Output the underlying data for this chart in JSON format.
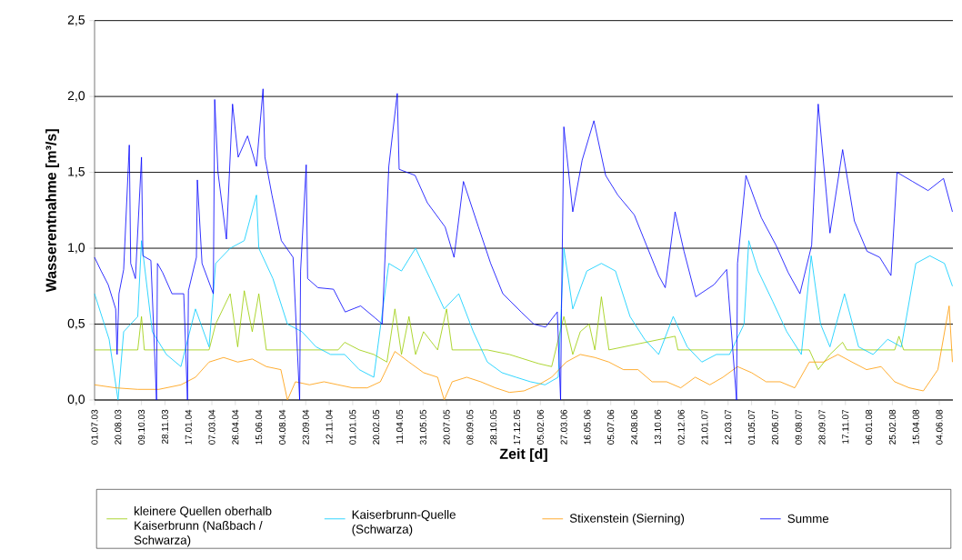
{
  "chart_data": {
    "type": "line",
    "xlabel": "Zeit [d]",
    "ylabel": "Wasserentnahme [m³/s]",
    "xlim": [
      "2003-07-01",
      "2008-07-03"
    ],
    "xticks": [
      {
        "value": "2003-07-01",
        "label": "01.07.03"
      },
      {
        "value": "2003-08-20",
        "label": "20.08.03"
      },
      {
        "value": "2003-10-09",
        "label": "09.10.03"
      },
      {
        "value": "2003-11-28",
        "label": "28.11.03"
      },
      {
        "value": "2004-01-17",
        "label": "17.01.04"
      },
      {
        "value": "2004-03-07",
        "label": "07.03.04"
      },
      {
        "value": "2004-04-26",
        "label": "26.04.04"
      },
      {
        "value": "2004-06-15",
        "label": "15.06.04"
      },
      {
        "value": "2004-08-04",
        "label": "04.08.04"
      },
      {
        "value": "2004-09-23",
        "label": "23.09.04"
      },
      {
        "value": "2004-11-12",
        "label": "12.11.04"
      },
      {
        "value": "2005-01-01",
        "label": "01.01.05"
      },
      {
        "value": "2005-02-20",
        "label": "20.02.05"
      },
      {
        "value": "2005-04-11",
        "label": "11.04.05"
      },
      {
        "value": "2005-05-31",
        "label": "31.05.05"
      },
      {
        "value": "2005-07-20",
        "label": "20.07.05"
      },
      {
        "value": "2005-09-08",
        "label": "08.09.05"
      },
      {
        "value": "2005-10-28",
        "label": "28.10.05"
      },
      {
        "value": "2005-12-17",
        "label": "17.12.05"
      },
      {
        "value": "2006-02-05",
        "label": "05.02.06"
      },
      {
        "value": "2006-03-27",
        "label": "27.03.06"
      },
      {
        "value": "2006-05-16",
        "label": "16.05.06"
      },
      {
        "value": "2006-07-05",
        "label": "05.07.06"
      },
      {
        "value": "2006-08-24",
        "label": "24.08.06"
      },
      {
        "value": "2006-10-13",
        "label": "13.10.06"
      },
      {
        "value": "2006-12-02",
        "label": "02.12.06"
      },
      {
        "value": "2007-01-21",
        "label": "21.01.07"
      },
      {
        "value": "2007-03-12",
        "label": "12.03.07"
      },
      {
        "value": "2007-05-01",
        "label": "01.05.07"
      },
      {
        "value": "2007-06-20",
        "label": "20.06.07"
      },
      {
        "value": "2007-08-09",
        "label": "09.08.07"
      },
      {
        "value": "2007-09-28",
        "label": "28.09.07"
      },
      {
        "value": "2007-11-17",
        "label": "17.11.07"
      },
      {
        "value": "2008-01-06",
        "label": "06.01.08"
      },
      {
        "value": "2008-02-25",
        "label": "25.02.08"
      },
      {
        "value": "2008-04-15",
        "label": "15.04.08"
      },
      {
        "value": "2008-06-04",
        "label": "04.06.08"
      }
    ],
    "ylim": [
      0,
      2.5
    ],
    "yticks": [
      {
        "value": 0,
        "label": "0,0"
      },
      {
        "value": 0.5,
        "label": "0,5"
      },
      {
        "value": 1,
        "label": "1,0"
      },
      {
        "value": 1.5,
        "label": "1,5"
      },
      {
        "value": 2,
        "label": "2,0"
      },
      {
        "value": 2.5,
        "label": "2,5"
      }
    ],
    "grid": "y",
    "legend": "bottom",
    "marker": "none",
    "line_style": "solid",
    "series": [
      {
        "name": "kleinere Quellen oberhalb Kaiserbrunn (Naßbach / Schwarza)",
        "color": "#99cc00",
        "x": [
          "2003-07-01",
          "2003-10-01",
          "2003-10-09",
          "2003-10-15",
          "2004-03-01",
          "2004-03-15",
          "2004-04-15",
          "2004-05-01",
          "2004-05-15",
          "2004-06-01",
          "2004-06-15",
          "2004-07-01",
          "2004-12-01",
          "2004-12-15",
          "2005-01-15",
          "2005-02-15",
          "2005-03-15",
          "2005-04-01",
          "2005-04-15",
          "2005-05-01",
          "2005-05-15",
          "2005-06-01",
          "2005-07-01",
          "2005-07-20",
          "2005-08-01",
          "2005-10-15",
          "2005-12-01",
          "2006-02-01",
          "2006-03-01",
          "2006-03-27",
          "2006-04-15",
          "2006-05-01",
          "2006-05-20",
          "2006-06-01",
          "2006-06-15",
          "2006-07-01",
          "2006-11-19",
          "2006-11-25",
          "2007-09-01",
          "2007-09-20",
          "2007-10-15",
          "2007-11-11",
          "2007-11-20",
          "2008-03-01",
          "2008-03-10",
          "2008-03-20",
          "2008-07-02"
        ],
        "values": [
          0.33,
          0.33,
          0.55,
          0.33,
          0.33,
          0.5,
          0.7,
          0.35,
          0.72,
          0.45,
          0.7,
          0.33,
          0.33,
          0.38,
          0.33,
          0.3,
          0.25,
          0.6,
          0.3,
          0.55,
          0.3,
          0.45,
          0.33,
          0.6,
          0.33,
          0.33,
          0.3,
          0.24,
          0.22,
          0.55,
          0.3,
          0.45,
          0.5,
          0.33,
          0.68,
          0.33,
          0.42,
          0.33,
          0.33,
          0.2,
          0.3,
          0.38,
          0.33,
          0.33,
          0.42,
          0.33,
          0.33
        ]
      },
      {
        "name": "Kaiserbrunn-Quelle (Schwarza)",
        "color": "#00ccff",
        "x": [
          "2003-07-01",
          "2003-08-01",
          "2003-08-20",
          "2003-09-01",
          "2003-10-01",
          "2003-10-09",
          "2003-11-01",
          "2003-12-01",
          "2004-01-01",
          "2004-02-01",
          "2004-03-01",
          "2004-03-15",
          "2004-04-15",
          "2004-05-15",
          "2004-06-10",
          "2004-06-15",
          "2004-07-15",
          "2004-08-15",
          "2004-09-15",
          "2004-10-15",
          "2004-11-15",
          "2004-12-15",
          "2005-01-15",
          "2005-02-15",
          "2005-03-19",
          "2005-04-15",
          "2005-05-15",
          "2005-06-15",
          "2005-07-15",
          "2005-08-15",
          "2005-09-15",
          "2005-10-15",
          "2005-11-15",
          "2005-12-15",
          "2006-01-15",
          "2006-02-15",
          "2006-03-15",
          "2006-03-27",
          "2006-04-15",
          "2006-05-15",
          "2006-06-15",
          "2006-07-15",
          "2006-08-15",
          "2006-09-15",
          "2006-10-15",
          "2006-11-15",
          "2006-12-15",
          "2007-01-15",
          "2007-02-15",
          "2007-03-15",
          "2007-04-15",
          "2007-04-25",
          "2007-05-15",
          "2007-06-15",
          "2007-07-15",
          "2007-08-15",
          "2007-09-05",
          "2007-09-25",
          "2007-10-15",
          "2007-11-15",
          "2007-12-15",
          "2008-01-15",
          "2008-02-15",
          "2008-03-15",
          "2008-04-15",
          "2008-05-15",
          "2008-06-15",
          "2008-07-02"
        ],
        "values": [
          0.7,
          0.4,
          0.0,
          0.45,
          0.55,
          1.05,
          0.45,
          0.3,
          0.22,
          0.6,
          0.35,
          0.9,
          1.0,
          1.05,
          1.35,
          1.0,
          0.8,
          0.5,
          0.45,
          0.35,
          0.3,
          0.3,
          0.2,
          0.15,
          0.9,
          0.85,
          1.0,
          0.8,
          0.6,
          0.7,
          0.45,
          0.25,
          0.18,
          0.15,
          0.12,
          0.1,
          0.15,
          1.0,
          0.6,
          0.85,
          0.9,
          0.85,
          0.55,
          0.4,
          0.3,
          0.55,
          0.35,
          0.25,
          0.3,
          0.3,
          0.5,
          1.05,
          0.85,
          0.65,
          0.45,
          0.3,
          0.95,
          0.5,
          0.35,
          0.7,
          0.35,
          0.3,
          0.4,
          0.35,
          0.9,
          0.95,
          0.9,
          0.75
        ]
      },
      {
        "name": "Stixenstein (Sierning)",
        "color": "#ff9900",
        "x": [
          "2003-07-01",
          "2003-08-15",
          "2003-10-01",
          "2003-11-15",
          "2004-01-01",
          "2004-02-01",
          "2004-03-01",
          "2004-04-01",
          "2004-05-01",
          "2004-06-01",
          "2004-07-01",
          "2004-08-01",
          "2004-08-15",
          "2004-09-01",
          "2004-10-01",
          "2004-11-01",
          "2004-12-01",
          "2005-01-01",
          "2005-02-01",
          "2005-03-01",
          "2005-04-01",
          "2005-05-01",
          "2005-06-01",
          "2005-07-01",
          "2005-07-15",
          "2005-08-01",
          "2005-09-01",
          "2005-10-01",
          "2005-11-01",
          "2005-12-01",
          "2006-01-01",
          "2006-02-01",
          "2006-03-01",
          "2006-04-01",
          "2006-05-01",
          "2006-06-01",
          "2006-07-01",
          "2006-08-01",
          "2006-09-01",
          "2006-10-01",
          "2006-11-01",
          "2006-12-01",
          "2007-01-01",
          "2007-02-01",
          "2007-03-01",
          "2007-04-01",
          "2007-05-01",
          "2007-06-01",
          "2007-07-01",
          "2007-08-01",
          "2007-09-01",
          "2007-10-01",
          "2007-11-01",
          "2007-12-01",
          "2008-01-01",
          "2008-02-01",
          "2008-03-01",
          "2008-04-01",
          "2008-05-01",
          "2008-06-01",
          "2008-06-25",
          "2008-07-02"
        ],
        "values": [
          0.1,
          0.08,
          0.07,
          0.07,
          0.1,
          0.15,
          0.25,
          0.28,
          0.25,
          0.27,
          0.22,
          0.2,
          0.0,
          0.12,
          0.1,
          0.12,
          0.1,
          0.08,
          0.08,
          0.12,
          0.32,
          0.25,
          0.18,
          0.15,
          0.0,
          0.12,
          0.15,
          0.12,
          0.08,
          0.05,
          0.06,
          0.1,
          0.15,
          0.25,
          0.3,
          0.28,
          0.25,
          0.2,
          0.2,
          0.12,
          0.12,
          0.08,
          0.15,
          0.1,
          0.15,
          0.22,
          0.18,
          0.12,
          0.12,
          0.08,
          0.25,
          0.25,
          0.3,
          0.25,
          0.2,
          0.22,
          0.12,
          0.08,
          0.06,
          0.2,
          0.62,
          0.25
        ]
      },
      {
        "name": "Summe",
        "color": "#0000ff",
        "x": [
          "2003-07-01",
          "2003-07-15",
          "2003-07-30",
          "2003-08-15",
          "2003-08-18",
          "2003-08-22",
          "2003-09-01",
          "2003-09-13",
          "2003-09-16",
          "2003-09-26",
          "2003-10-09",
          "2003-10-12",
          "2003-10-29",
          "2003-11-10",
          "2003-11-12",
          "2003-11-23",
          "2003-12-13",
          "2004-01-07",
          "2004-01-15",
          "2004-01-17",
          "2004-02-03",
          "2004-02-05",
          "2004-02-15",
          "2004-03-10",
          "2004-03-13",
          "2004-03-20",
          "2004-04-07",
          "2004-04-20",
          "2004-05-02",
          "2004-05-22",
          "2004-06-10",
          "2004-06-24",
          "2004-06-28",
          "2004-07-13",
          "2004-08-02",
          "2004-08-27",
          "2004-09-10",
          "2004-09-12",
          "2004-09-24",
          "2004-09-27",
          "2004-10-19",
          "2004-11-21",
          "2004-12-16",
          "2005-01-18",
          "2005-02-18",
          "2005-03-05",
          "2005-03-19",
          "2005-04-06",
          "2005-04-10",
          "2005-05-14",
          "2005-06-09",
          "2005-07-17",
          "2005-08-05",
          "2005-08-25",
          "2005-09-26",
          "2005-10-22",
          "2005-11-17",
          "2005-12-26",
          "2006-01-22",
          "2006-02-16",
          "2006-03-13",
          "2006-03-20",
          "2006-03-22",
          "2006-03-27",
          "2006-04-15",
          "2006-05-05",
          "2006-05-30",
          "2006-06-24",
          "2006-07-20",
          "2006-08-24",
          "2006-09-19",
          "2006-10-15",
          "2006-10-29",
          "2006-11-19",
          "2006-12-08",
          "2007-01-02",
          "2007-02-10",
          "2007-03-09",
          "2007-03-30",
          "2007-04-01",
          "2007-04-19",
          "2007-05-22",
          "2007-06-22",
          "2007-07-18",
          "2007-08-12",
          "2007-09-06",
          "2007-09-20",
          "2007-10-15",
          "2007-11-11",
          "2007-12-06",
          "2008-01-02",
          "2008-01-29",
          "2008-02-22",
          "2008-03-06",
          "2008-04-08",
          "2008-05-11",
          "2008-06-13",
          "2008-07-02"
        ],
        "values": [
          0.94,
          0.85,
          0.76,
          0.6,
          0.3,
          0.7,
          0.86,
          1.68,
          0.9,
          0.8,
          1.6,
          0.95,
          0.92,
          0.0,
          0.9,
          0.84,
          0.7,
          0.7,
          0.0,
          0.72,
          0.94,
          1.45,
          0.9,
          0.7,
          1.98,
          1.5,
          1.06,
          1.95,
          1.6,
          1.74,
          1.54,
          2.05,
          1.6,
          1.35,
          1.05,
          0.94,
          0.0,
          0.85,
          1.55,
          0.8,
          0.74,
          0.73,
          0.58,
          0.62,
          0.54,
          0.5,
          1.54,
          2.02,
          1.52,
          1.48,
          1.3,
          1.14,
          0.94,
          1.44,
          1.14,
          0.9,
          0.7,
          0.58,
          0.5,
          0.48,
          0.58,
          0.0,
          0.6,
          1.8,
          1.24,
          1.58,
          1.84,
          1.48,
          1.35,
          1.22,
          1.02,
          0.82,
          0.74,
          1.24,
          0.98,
          0.68,
          0.76,
          0.86,
          0.0,
          0.9,
          1.48,
          1.2,
          1.02,
          0.84,
          0.7,
          1.02,
          1.95,
          1.1,
          1.65,
          1.18,
          0.98,
          0.94,
          0.82,
          1.5,
          1.44,
          1.38,
          1.46,
          1.24
        ]
      }
    ]
  }
}
